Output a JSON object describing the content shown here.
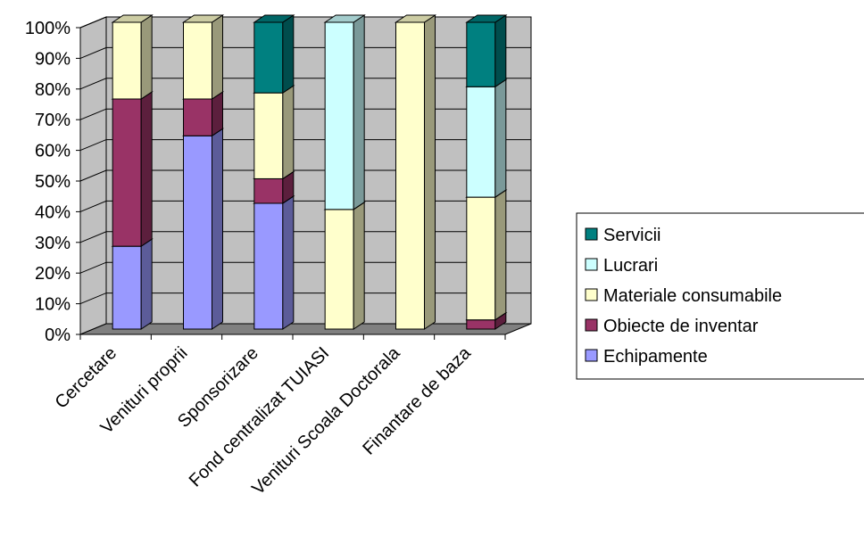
{
  "chart_data": {
    "type": "bar",
    "stacked": true,
    "percent": true,
    "three_d": true,
    "categories": [
      "Cercetare",
      "Venituri proprii",
      "Sponsorizare",
      "Fond centralizat TUIASI",
      "Venituri Scoala Doctorala",
      "Finantare de baza"
    ],
    "series": [
      {
        "name": "Echipamente",
        "color": "#9999ff",
        "values": [
          27,
          63,
          41,
          0,
          0,
          0
        ]
      },
      {
        "name": "Obiecte de inventar",
        "color": "#993366",
        "values": [
          48,
          12,
          8,
          0,
          0,
          3
        ]
      },
      {
        "name": "Materiale consumabile",
        "color": "#ffffcc",
        "values": [
          25,
          25,
          28,
          39,
          100,
          40
        ]
      },
      {
        "name": "Lucrari",
        "color": "#ccffff",
        "values": [
          0,
          0,
          0,
          61,
          0,
          36
        ]
      },
      {
        "name": "Servicii",
        "color": "#008080",
        "values": [
          0,
          0,
          23,
          0,
          0,
          21
        ]
      }
    ],
    "y_ticks": [
      "0%",
      "10%",
      "20%",
      "30%",
      "40%",
      "50%",
      "60%",
      "70%",
      "80%",
      "90%",
      "100%"
    ],
    "ylim": [
      0,
      100
    ],
    "grid": true,
    "wall_color": "#c0c0c0",
    "floor_color": "#808080",
    "legend_position": "right",
    "legend_order": [
      "Servicii",
      "Lucrari",
      "Materiale consumabile",
      "Obiecte de inventar",
      "Echipamente"
    ]
  }
}
